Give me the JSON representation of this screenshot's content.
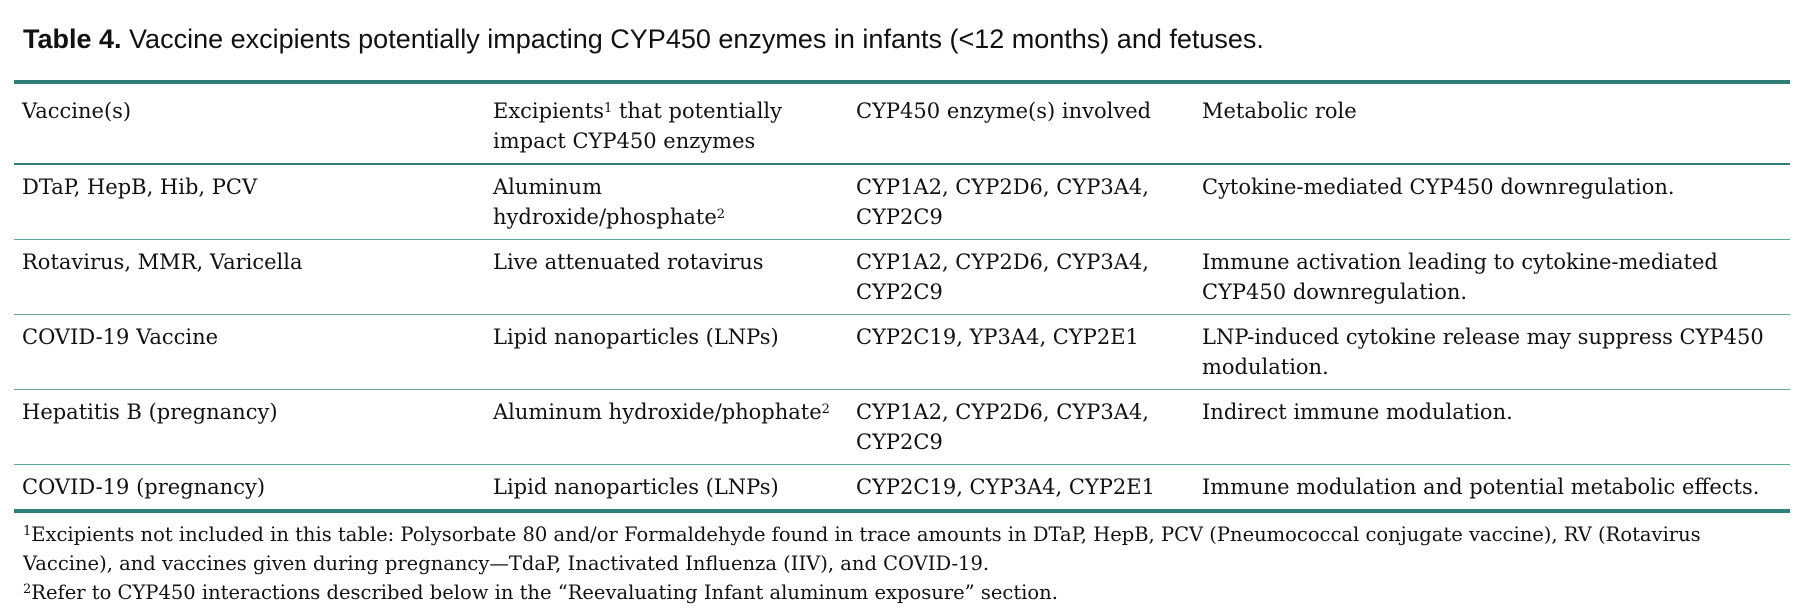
{
  "title": {
    "label": "Table 4.",
    "text": " Vaccine excipients potentially impacting CYP450 enzymes in infants (<12 months) and fetuses."
  },
  "table": {
    "header": [
      {
        "text": "Vaccine(s)"
      },
      {
        "text": "Excipients",
        "sup": "1",
        "after": " that potentially impact CYP450 enzymes"
      },
      {
        "text": "CYP450 enzyme(s) involved"
      },
      {
        "text": "Metabolic role"
      }
    ],
    "rows": [
      [
        {
          "text": "DTaP, HepB, Hib, PCV"
        },
        {
          "text": "Aluminum hydroxide/phosphate",
          "sup": "2"
        },
        {
          "text": "CYP1A2, CYP2D6, CYP3A4, CYP2C9"
        },
        {
          "text": "Cytokine-mediated CYP450 downregulation."
        }
      ],
      [
        {
          "text": "Rotavirus, MMR, Varicella"
        },
        {
          "text": "Live attenuated rotavirus"
        },
        {
          "text": "CYP1A2, CYP2D6, CYP3A4, CYP2C9"
        },
        {
          "text": "Immune activation leading to cytokine-mediated CYP450 downregulation."
        }
      ],
      [
        {
          "text": "COVID-19 Vaccine"
        },
        {
          "text": "Lipid nanoparticles (LNPs)"
        },
        {
          "text": "CYP2C19, YP3A4, CYP2E1"
        },
        {
          "text": "LNP-induced cytokine release may suppress CYP450 modulation."
        }
      ],
      [
        {
          "text": "Hepatitis B (pregnancy)"
        },
        {
          "text": "Aluminum hydroxide/phophate",
          "sup": "2"
        },
        {
          "text": "CYP1A2, CYP2D6, CYP3A4, CYP2C9"
        },
        {
          "text": "Indirect immune modulation."
        }
      ],
      [
        {
          "text": "COVID-19 (pregnancy)"
        },
        {
          "text": "Lipid nanoparticles (LNPs)"
        },
        {
          "text": "CYP2C19, CYP3A4, CYP2E1"
        },
        {
          "text": "Immune modulation and potential metabolic effects."
        }
      ]
    ]
  },
  "footnotes": [
    {
      "mark": "1",
      "text": "Excipients not included in this table: Polysorbate 80 and/or Formaldehyde found in trace amounts in DTaP, HepB, PCV (Pneumococcal conjugate vaccine), RV (Rotavirus Vaccine), and vaccines given during pregnancy—TdaP, Inactivated Influenza (IIV), and COVID-19."
    },
    {
      "mark": "2",
      "text": "Refer to CYP450 interactions described below in the “Reevaluating Infant aluminum exposure” section."
    }
  ]
}
